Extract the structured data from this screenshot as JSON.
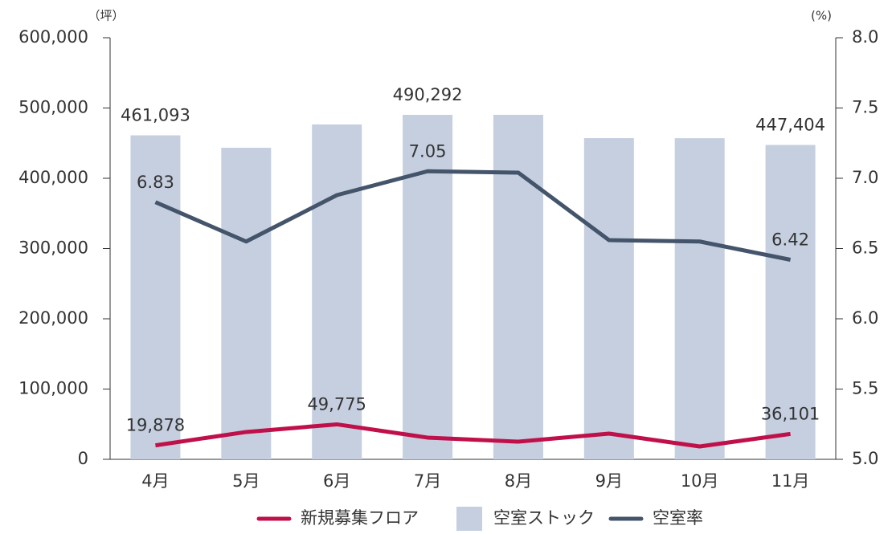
{
  "chart_data": {
    "type": "combo",
    "y_label": "（坪）",
    "y2_label": "(%)",
    "categories": [
      "4月",
      "5月",
      "6月",
      "7月",
      "8月",
      "9月",
      "10月",
      "11月"
    ],
    "ylim": [
      0,
      600000
    ],
    "yticks": [
      {
        "value": 0,
        "label": "0"
      },
      {
        "value": 100000,
        "label": "100,000"
      },
      {
        "value": 200000,
        "label": "200,000"
      },
      {
        "value": 300000,
        "label": "300,000"
      },
      {
        "value": 400000,
        "label": "400,000"
      },
      {
        "value": 500000,
        "label": "500,000"
      },
      {
        "value": 600000,
        "label": "600,000"
      }
    ],
    "y2lim": [
      5.0,
      8.0
    ],
    "y2ticks": [
      {
        "value": 5,
        "label": "5.0"
      },
      {
        "value": 5.5,
        "label": "5.5"
      },
      {
        "value": 6,
        "label": "6.0"
      },
      {
        "value": 6.5,
        "label": "6.5"
      },
      {
        "value": 7,
        "label": "7.0"
      },
      {
        "value": 7.5,
        "label": "7.5"
      },
      {
        "value": 8,
        "label": "8.0"
      }
    ],
    "series": [
      {
        "name": "新規募集フロア",
        "type": "line",
        "color": "#c0104a",
        "values": [
          19878,
          38900,
          49775,
          30900,
          25100,
          36600,
          18300,
          36101
        ],
        "value_labels": [
          "19,878",
          null,
          "49,775",
          null,
          null,
          null,
          null,
          "36,101"
        ]
      },
      {
        "name": "空室ストック",
        "type": "bar",
        "color": "#c5cfe0",
        "values": [
          461093,
          443400,
          476600,
          490292,
          490300,
          457100,
          457000,
          447404
        ],
        "value_labels": [
          "461,093",
          null,
          null,
          "490,292",
          null,
          null,
          null,
          "447,404"
        ]
      },
      {
        "name": "空室率",
        "type": "line",
        "axis": "y2",
        "color": "#44546a",
        "values": [
          6.83,
          6.55,
          6.88,
          7.05,
          7.04,
          6.56,
          6.55,
          6.42
        ],
        "value_labels": [
          "6.83",
          null,
          null,
          "7.05",
          null,
          null,
          null,
          "6.42"
        ]
      }
    ]
  }
}
